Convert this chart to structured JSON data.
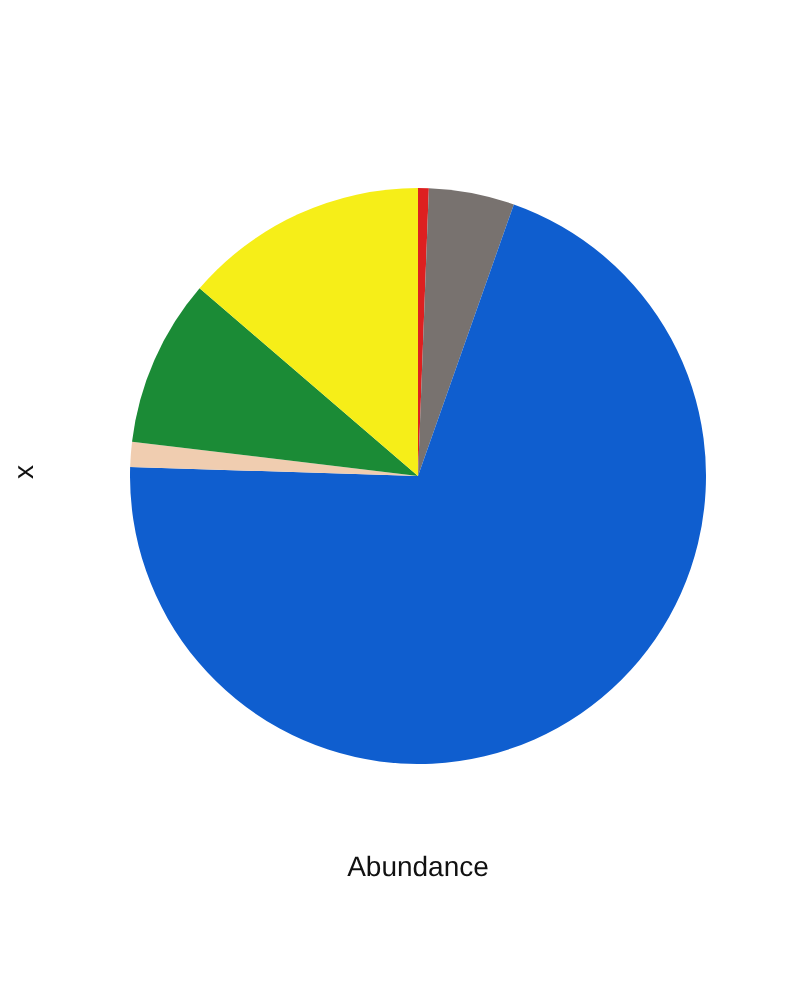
{
  "chart_data": {
    "type": "pie",
    "xlabel": "Abundance",
    "ylabel": "x",
    "categories": [
      null,
      null,
      null,
      null,
      null,
      null
    ],
    "values": [
      0.6,
      4.8,
      70.1,
      1.4,
      9.4,
      13.7
    ],
    "colors": [
      "#dd2020",
      "#78726f",
      "#0f5ecf",
      "#f0cdb0",
      "#1b8b36",
      "#f6ee18"
    ]
  }
}
